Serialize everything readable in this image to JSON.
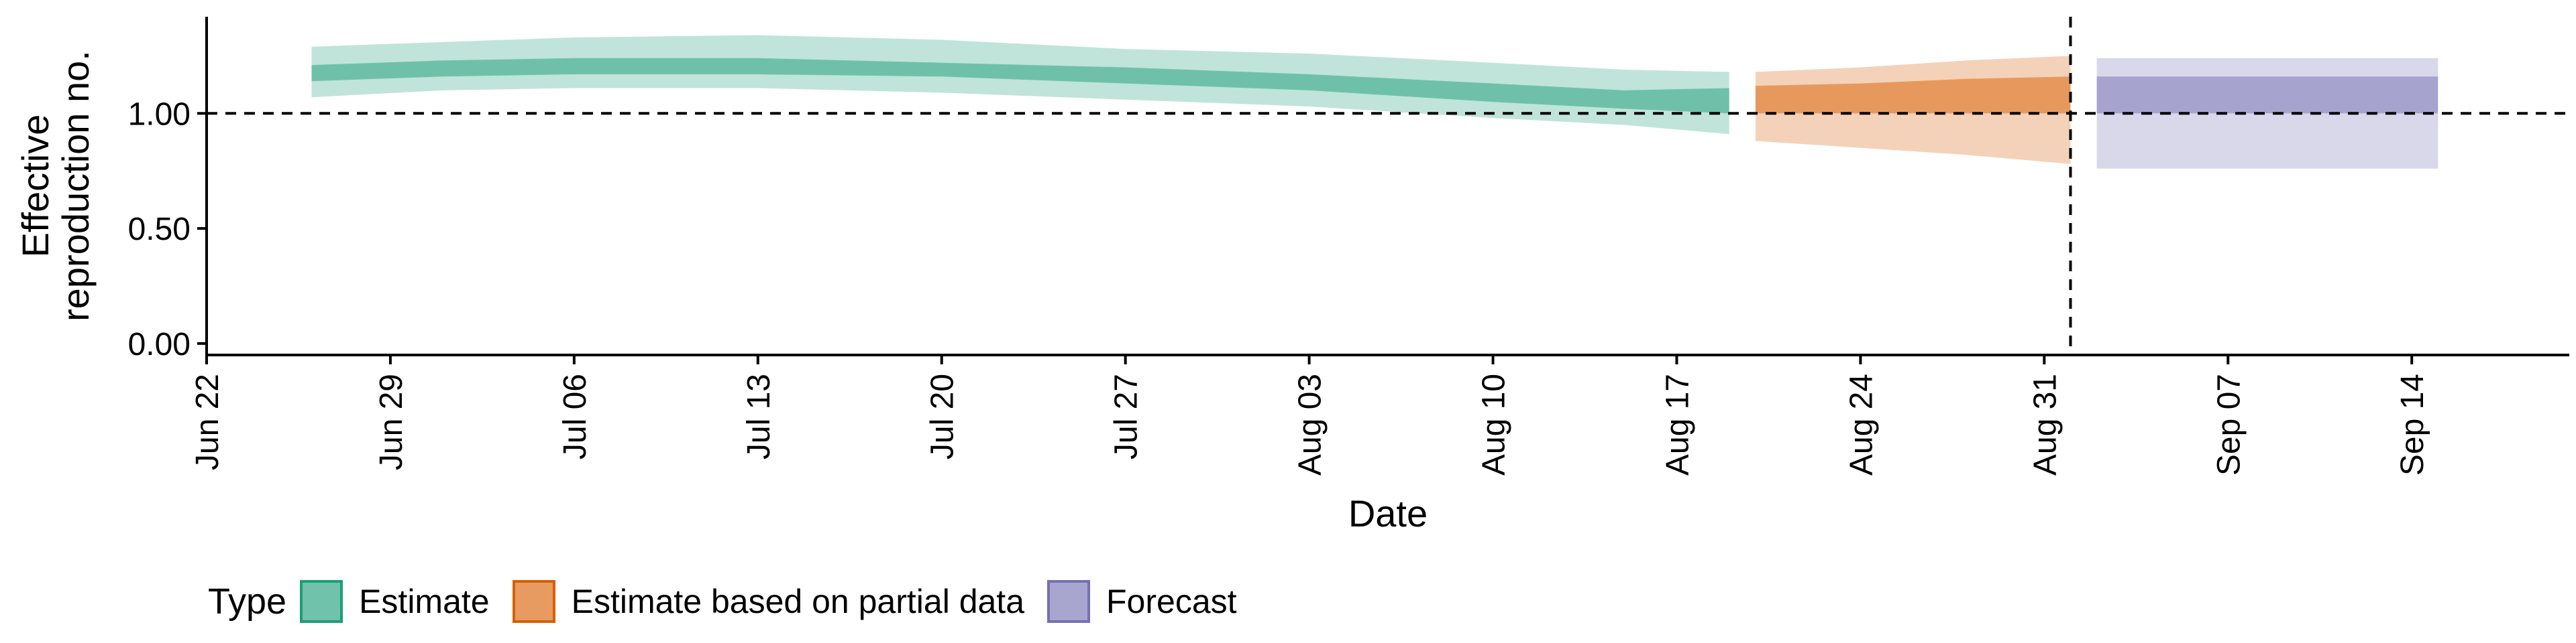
{
  "chart_data": {
    "type": "area",
    "xlabel": "Date",
    "ylabel_lines": [
      "Effective",
      "reproduction no."
    ],
    "x_range": [
      "2021-06-22",
      "2021-09-20"
    ],
    "ylim": [
      -0.05,
      1.42
    ],
    "x_ticks": [
      {
        "date": "2021-06-22",
        "label": "Jun 22"
      },
      {
        "date": "2021-06-29",
        "label": "Jun 29"
      },
      {
        "date": "2021-07-06",
        "label": "Jul 06"
      },
      {
        "date": "2021-07-13",
        "label": "Jul 13"
      },
      {
        "date": "2021-07-20",
        "label": "Jul 20"
      },
      {
        "date": "2021-07-27",
        "label": "Jul 27"
      },
      {
        "date": "2021-08-03",
        "label": "Aug 03"
      },
      {
        "date": "2021-08-10",
        "label": "Aug 10"
      },
      {
        "date": "2021-08-17",
        "label": "Aug 17"
      },
      {
        "date": "2021-08-24",
        "label": "Aug 24"
      },
      {
        "date": "2021-08-31",
        "label": "Aug 31"
      },
      {
        "date": "2021-09-07",
        "label": "Sep 07"
      },
      {
        "date": "2021-09-14",
        "label": "Sep 14"
      }
    ],
    "y_ticks": [
      {
        "value": 0,
        "label": "0.00"
      },
      {
        "value": 0.5,
        "label": "0.50"
      },
      {
        "value": 1,
        "label": "1.00"
      }
    ],
    "hline": 1.0,
    "vline": "2021-09-01",
    "grid": false,
    "legend_position": "bottom",
    "legend_title": "Type",
    "series": [
      {
        "name": "Estimate",
        "color": "#1b9e77",
        "points": [
          {
            "x": "2021-06-26",
            "lo90": 1.07,
            "lo50": 1.14,
            "med": 1.18,
            "hi50": 1.21,
            "hi90": 1.29
          },
          {
            "x": "2021-07-01",
            "lo90": 1.1,
            "lo50": 1.16,
            "med": 1.19,
            "hi50": 1.23,
            "hi90": 1.31
          },
          {
            "x": "2021-07-06",
            "lo90": 1.11,
            "lo50": 1.17,
            "med": 1.21,
            "hi50": 1.24,
            "hi90": 1.33
          },
          {
            "x": "2021-07-13",
            "lo90": 1.11,
            "lo50": 1.17,
            "med": 1.21,
            "hi50": 1.24,
            "hi90": 1.34
          },
          {
            "x": "2021-07-20",
            "lo90": 1.09,
            "lo50": 1.16,
            "med": 1.19,
            "hi50": 1.22,
            "hi90": 1.32
          },
          {
            "x": "2021-07-27",
            "lo90": 1.06,
            "lo50": 1.13,
            "med": 1.17,
            "hi50": 1.2,
            "hi90": 1.28
          },
          {
            "x": "2021-08-03",
            "lo90": 1.03,
            "lo50": 1.1,
            "med": 1.14,
            "hi50": 1.17,
            "hi90": 1.26
          },
          {
            "x": "2021-08-10",
            "lo90": 0.98,
            "lo50": 1.05,
            "med": 1.09,
            "hi50": 1.13,
            "hi90": 1.22
          },
          {
            "x": "2021-08-15",
            "lo90": 0.95,
            "lo50": 1.02,
            "med": 1.06,
            "hi50": 1.1,
            "hi90": 1.19
          },
          {
            "x": "2021-08-19",
            "lo90": 0.91,
            "lo50": 1.0,
            "med": 1.05,
            "hi50": 1.11,
            "hi90": 1.18
          }
        ]
      },
      {
        "name": "Estimate based on partial data",
        "color": "#d95f02",
        "points": [
          {
            "x": "2021-08-20",
            "lo90": 0.88,
            "lo50": 1.0,
            "med": 1.06,
            "hi50": 1.12,
            "hi90": 1.18
          },
          {
            "x": "2021-08-24",
            "lo90": 0.85,
            "lo50": 1.0,
            "med": 1.07,
            "hi50": 1.13,
            "hi90": 1.2
          },
          {
            "x": "2021-08-28",
            "lo90": 0.82,
            "lo50": 1.0,
            "med": 1.08,
            "hi50": 1.15,
            "hi90": 1.23
          },
          {
            "x": "2021-09-01",
            "lo90": 0.78,
            "lo50": 1.0,
            "med": 1.08,
            "hi50": 1.16,
            "hi90": 1.25
          }
        ]
      },
      {
        "name": "Forecast",
        "color": "#7570b3",
        "points": [
          {
            "x": "2021-09-02",
            "lo90": 0.76,
            "lo50": 1.0,
            "med": 1.08,
            "hi50": 1.16,
            "hi90": 1.24
          },
          {
            "x": "2021-09-15",
            "lo90": 0.76,
            "lo50": 1.0,
            "med": 1.08,
            "hi50": 1.16,
            "hi90": 1.24
          }
        ]
      }
    ]
  }
}
